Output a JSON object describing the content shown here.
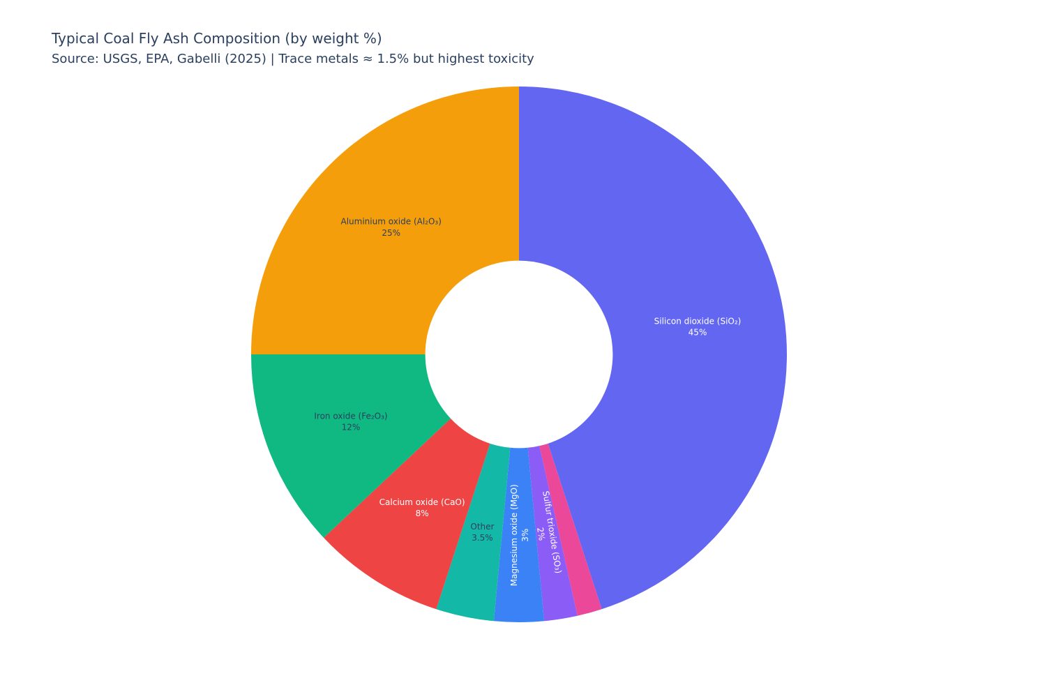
{
  "chart_data": {
    "type": "pie",
    "title": "Typical Coal Fly Ash Composition (by weight %)",
    "subtitle": "Source: USGS, EPA, Gabelli (2025) | Trace metals ≈ 1.5% but highest toxicity",
    "categories": [
      "Silicon dioxide (SiO₂)",
      null,
      "Sulfur trioxide (SO₃)",
      "Magnesium oxide (MgO)",
      "Other",
      "Calcium oxide (CaO)",
      "Iron oxide (Fe₂O₃)",
      "Aluminium oxide (Al₂O₃)"
    ],
    "values": [
      45,
      1.5,
      2,
      3,
      3.5,
      8,
      12,
      25
    ],
    "value_labels": [
      "45%",
      null,
      "2%",
      "3%",
      "3.5%",
      "8%",
      "12%",
      "25%"
    ],
    "colors": [
      "#6366f1",
      "#ec4899",
      "#8b5cf6",
      "#3b82f6",
      "#14b8a6",
      "#ef4444",
      "#10b981",
      "#f59e0b"
    ],
    "hole": 0.35
  }
}
